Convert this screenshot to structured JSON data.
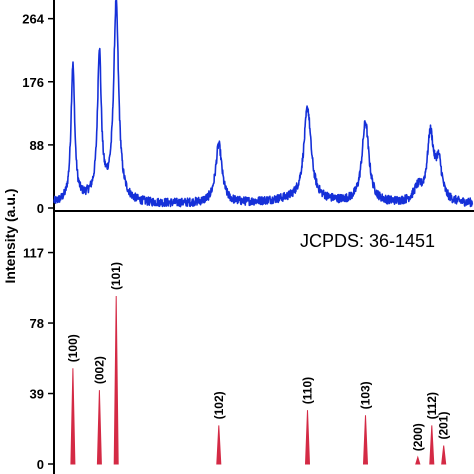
{
  "chart_data": [
    {
      "type": "line",
      "panel": "top",
      "ylabel": "Intensity (a.u.)",
      "yticks": [
        0,
        88,
        176,
        264
      ],
      "ylim": [
        0,
        290
      ],
      "xlim": [
        20,
        80
      ],
      "baseline": 6,
      "noise": 6,
      "color": "#1530d8",
      "peaks": [
        {
          "x": 22.7,
          "height": 190,
          "width": 0.32
        },
        {
          "x": 26.5,
          "height": 200,
          "width": 0.32
        },
        {
          "x": 28.9,
          "height": 272,
          "width": 0.42
        },
        {
          "x": 43.6,
          "height": 82,
          "width": 0.55
        },
        {
          "x": 56.3,
          "height": 128,
          "width": 0.62
        },
        {
          "x": 64.6,
          "height": 112,
          "width": 0.6
        },
        {
          "x": 72.1,
          "height": 18,
          "width": 0.7
        },
        {
          "x": 73.9,
          "height": 92,
          "width": 0.55
        },
        {
          "x": 75.1,
          "height": 52,
          "width": 0.55
        }
      ]
    },
    {
      "type": "bar",
      "panel": "bottom",
      "reference": "JCPDS: 36-1451",
      "yticks": [
        0,
        39,
        78,
        117
      ],
      "ylim": [
        0,
        140
      ],
      "xlim": [
        20,
        80
      ],
      "color": "#d42a45",
      "peaks": [
        {
          "x": 22.7,
          "value": 57,
          "label": "(100)"
        },
        {
          "x": 26.5,
          "value": 44,
          "label": "(002)"
        },
        {
          "x": 28.9,
          "value": 100,
          "label": "(101)"
        },
        {
          "x": 43.6,
          "value": 23,
          "label": "(102)"
        },
        {
          "x": 56.3,
          "value": 32,
          "label": "(110)"
        },
        {
          "x": 64.6,
          "value": 29,
          "label": "(103)"
        },
        {
          "x": 72.1,
          "value": 4,
          "label": "(200)"
        },
        {
          "x": 74.1,
          "value": 23,
          "label": "(112)"
        },
        {
          "x": 75.8,
          "value": 11,
          "label": "(201)"
        }
      ]
    }
  ]
}
